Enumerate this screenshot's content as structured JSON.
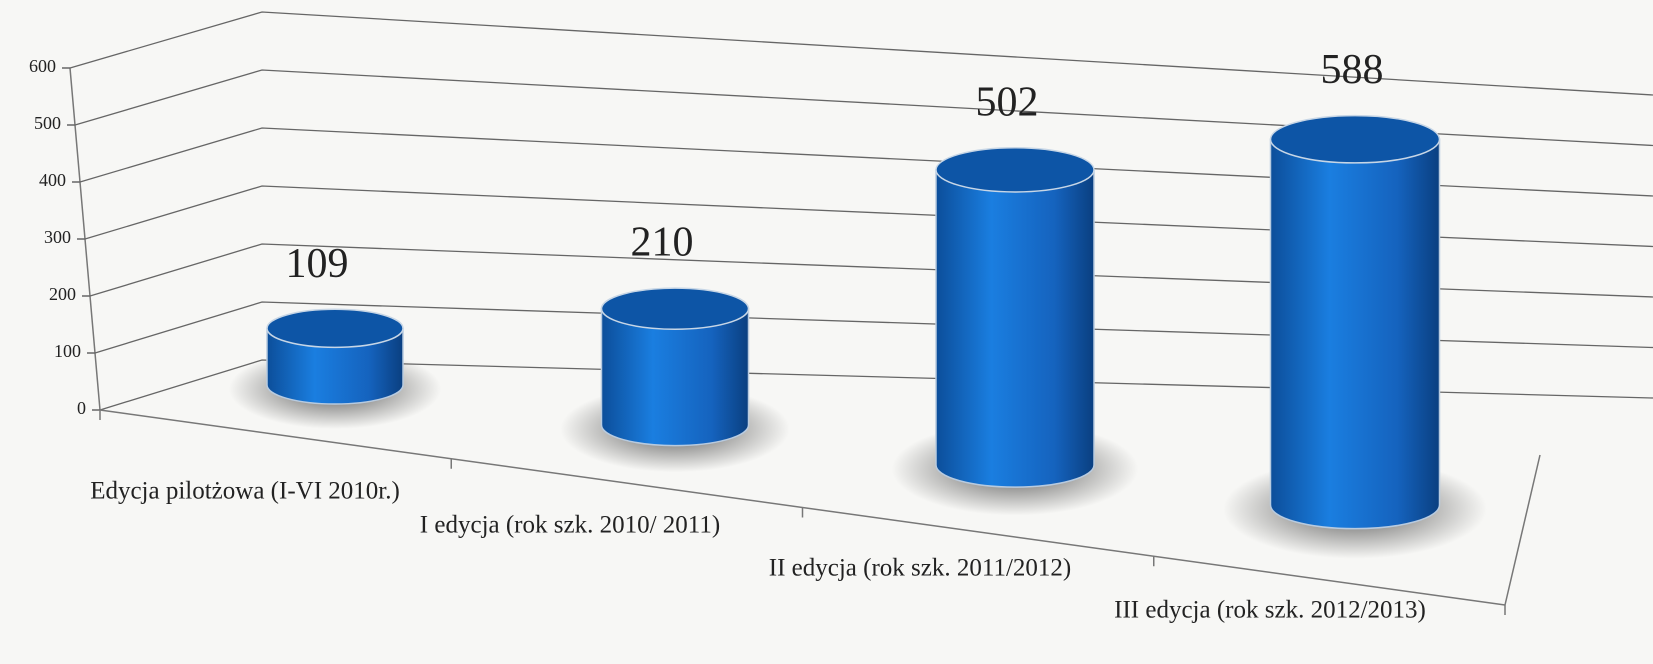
{
  "chart_data": {
    "type": "bar",
    "categories": [
      "Edycja pilotżowa (I-VI 2010r.)",
      "I edycja (rok szk. 2010/ 2011)",
      "II edycja (rok szk. 2011/2012)",
      "III edycja (rok szk. 2012/2013)"
    ],
    "values": [
      109,
      210,
      502,
      588
    ],
    "color": "#1a74d4",
    "ylim": [
      0,
      600
    ],
    "yticks": [
      0,
      100,
      200,
      300,
      400,
      500,
      600
    ],
    "grid": true
  }
}
